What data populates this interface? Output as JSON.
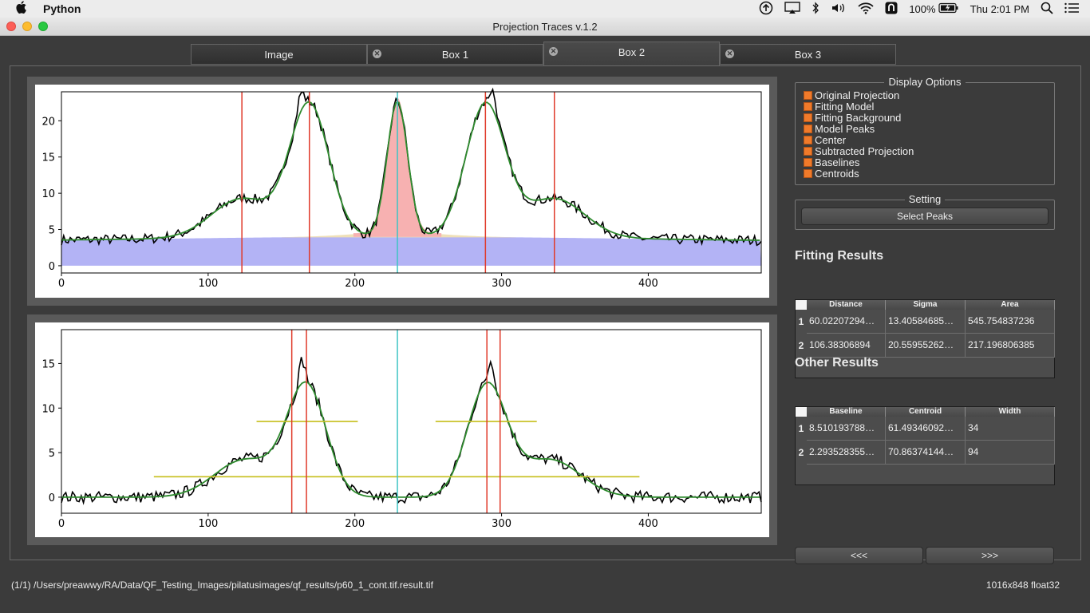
{
  "menubar": {
    "app_name": "Python",
    "battery": "100%",
    "clock": "Thu 2:01 PM"
  },
  "window": {
    "title": "Projection Traces v.1.2"
  },
  "tabs": [
    {
      "label": "Image",
      "closable": false,
      "active": false
    },
    {
      "label": "Box 1",
      "closable": true,
      "active": false
    },
    {
      "label": "Box 2",
      "closable": true,
      "active": true
    },
    {
      "label": "Box 3",
      "closable": true,
      "active": false
    }
  ],
  "display_options": {
    "title": "Display Options",
    "items": [
      "Original Projection",
      "Fitting Model",
      "Fitting Background",
      "Model Peaks",
      "Center",
      "Subtracted Projection",
      "Baselines",
      "Centroids"
    ],
    "checkbox_color": "#f07a2a"
  },
  "setting": {
    "title": "Setting",
    "select_peaks_label": "Select Peaks"
  },
  "fitting_results": {
    "title": "Fitting Results",
    "columns": [
      "Distance",
      "Sigma",
      "Area"
    ],
    "rows": [
      {
        "num": "1",
        "cells": [
          "60.02207294…",
          "13.40584685…",
          "545.754837236"
        ]
      },
      {
        "num": "2",
        "cells": [
          "106.38306894",
          "20.55955262…",
          "217.196806385"
        ]
      }
    ]
  },
  "other_results": {
    "title": "Other Results",
    "columns": [
      "Baseline",
      "Centroid",
      "Width"
    ],
    "rows": [
      {
        "num": "1",
        "cells": [
          "8.510193788…",
          "61.49346092…",
          "34"
        ]
      },
      {
        "num": "2",
        "cells": [
          "2.293528355…",
          "70.86374144…",
          "94"
        ]
      }
    ]
  },
  "nav": {
    "prev_label": "<<<",
    "next_label": ">>>"
  },
  "status": {
    "path": "(1/1) /Users/preawwy/RA/Data/QF_Testing_Images/pilatusimages/qf_results/p60_1_cont.tif.result.tif",
    "info": "1016x848 float32"
  },
  "chart_data": [
    {
      "type": "line",
      "xlim": [
        0,
        477
      ],
      "ylim": [
        -1,
        24
      ],
      "x_ticks": [
        0,
        100,
        200,
        300,
        400
      ],
      "y_ticks": [
        0,
        5,
        10,
        15,
        20
      ],
      "center": 229,
      "vlines_red": [
        123,
        169,
        289,
        336
      ],
      "peaks": [
        {
          "mu": 169,
          "sigma": 13.4,
          "amp": 18.2
        },
        {
          "mu": 289,
          "sigma": 13.4,
          "amp": 18.2
        },
        {
          "mu": 123,
          "sigma": 20.6,
          "amp": 5.4
        },
        {
          "mu": 336,
          "sigma": 20.6,
          "amp": 5.4
        },
        {
          "mu": 229,
          "sigma": 7.0,
          "amp": 18.7
        }
      ],
      "background": {
        "amp": 4.0,
        "edge": 3.3
      },
      "colors": {
        "data": "#000000",
        "model": "#2e8b2e",
        "background": "#b3b3f5",
        "center_peak": "#f7b1b1",
        "wheat": "#efe0b8",
        "vline": "#e03a2a",
        "center": "#3ec4c4"
      }
    },
    {
      "type": "line",
      "xlim": [
        0,
        477
      ],
      "ylim": [
        -1.8,
        18.8
      ],
      "x_ticks": [
        0,
        100,
        200,
        300,
        400
      ],
      "y_ticks": [
        0,
        5,
        10,
        15
      ],
      "center": 229,
      "vlines_red": [
        157,
        167,
        290,
        299
      ],
      "hlines_baseline": [
        {
          "y": 8.5,
          "x0": 133,
          "x1": 202
        },
        {
          "y": 8.5,
          "x0": 255,
          "x1": 324
        },
        {
          "y": 2.3,
          "x0": 63,
          "x1": 394
        }
      ],
      "peaks": [
        {
          "mu": 167,
          "sigma": 13.4,
          "amp": 12.4
        },
        {
          "mu": 290,
          "sigma": 13.4,
          "amp": 12.4
        },
        {
          "mu": 125,
          "sigma": 20.6,
          "amp": 4.2
        },
        {
          "mu": 333,
          "sigma": 20.6,
          "amp": 4.2
        }
      ],
      "colors": {
        "data": "#000000",
        "model": "#2e8b2e",
        "vline": "#e03a2a",
        "center": "#3ec4c4",
        "baseline": "#c9c22a"
      }
    }
  ]
}
